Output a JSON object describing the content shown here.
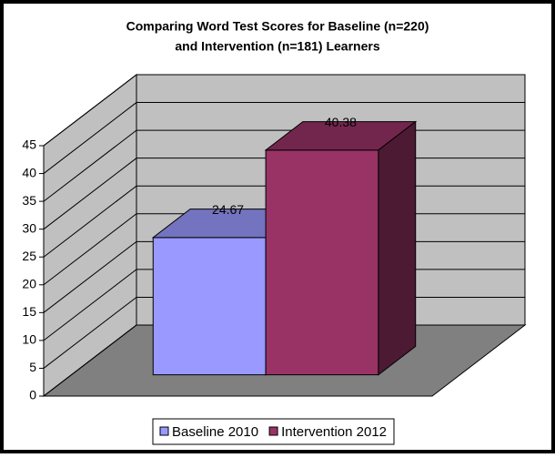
{
  "chart_data": {
    "type": "bar3d",
    "title": [
      "Comparing Word Test Scores for Baseline (n=220)",
      "and Intervention (n=181) Learners"
    ],
    "categories": [
      null
    ],
    "series": [
      {
        "name": "Baseline 2010",
        "color": "#9999ff",
        "values": [
          24.67
        ]
      },
      {
        "name": "Intervention 2012",
        "color": "#993366",
        "values": [
          40.38
        ]
      }
    ],
    "ylim": [
      0,
      45
    ],
    "yticks": [
      0,
      5,
      10,
      15,
      20,
      25,
      30,
      35,
      40,
      45
    ],
    "grid": true,
    "legend": "bottom"
  }
}
